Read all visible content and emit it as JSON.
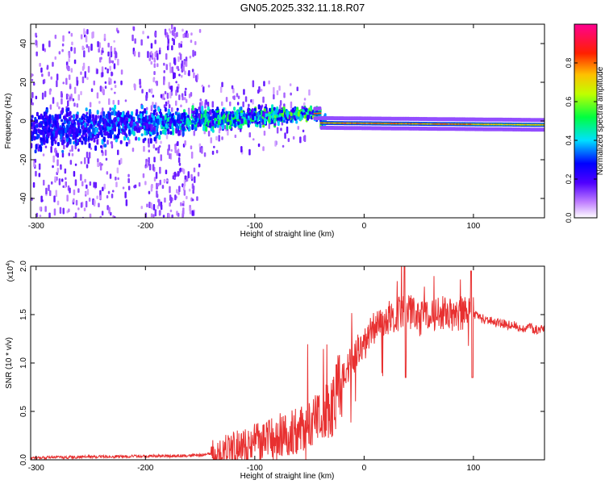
{
  "figure_title": "GN05.2025.332.11.18.R07",
  "chart_data": [
    {
      "type": "heatmap",
      "title": "GN05.2025.332.11.18.R07",
      "xlabel": "Height of straight line (km)",
      "ylabel": "Frequency (Hz)",
      "xlim": [
        -305,
        165
      ],
      "ylim": [
        -50,
        50
      ],
      "x_ticks": [
        -300,
        -200,
        -100,
        0,
        100
      ],
      "x_tick_labels": [
        "-300",
        "-200",
        "-100",
        "0",
        "100"
      ],
      "y_ticks": [
        -40,
        -20,
        0,
        20,
        40
      ],
      "y_tick_labels": [
        "-40",
        "-20",
        "0",
        "20",
        "40"
      ],
      "colorbar": {
        "label": "Normalized spectral amplitude",
        "range": [
          0,
          1
        ],
        "ticks": [
          0.0,
          0.2,
          0.4,
          0.6,
          0.8
        ],
        "tick_labels": [
          "0.0",
          "0.2",
          "0.4",
          "0.6",
          "0.8"
        ],
        "colors": [
          "#ffffff",
          "#8a2be2",
          "#0000ff",
          "#00ffff",
          "#00ff00",
          "#ffff00",
          "#ff8000",
          "#ff0000",
          "#ff00a0"
        ]
      },
      "features": {
        "broadband_noise_x_range": [
          -305,
          -150
        ],
        "narrowband_line_x_range": [
          -40,
          165
        ],
        "line_frequency_hz": -2
      }
    },
    {
      "type": "line",
      "xlabel": "Height of straight line (km)",
      "ylabel": "SNR (10 * v/v)",
      "y_multiplier_label": "(x10",
      "y_multiplier_exp": "4",
      "xlim": [
        -305,
        165
      ],
      "ylim": [
        0,
        2.0
      ],
      "x_ticks": [
        -300,
        -200,
        -100,
        0,
        100
      ],
      "x_tick_labels": [
        "-300",
        "-200",
        "-100",
        "0",
        "100"
      ],
      "y_ticks": [
        0.0,
        0.5,
        1.0,
        1.5,
        2.0
      ],
      "y_tick_labels": [
        "0.0",
        "0.5",
        "1.0",
        "1.5",
        "2.0"
      ],
      "series": [
        {
          "name": "SNR",
          "color": "#e83030",
          "x": [
            -305,
            -250,
            -200,
            -160,
            -140,
            -120,
            -100,
            -80,
            -60,
            -40,
            -30,
            -20,
            -10,
            0,
            10,
            20,
            30,
            40,
            50,
            60,
            70,
            80,
            90,
            100,
            110,
            120,
            130,
            140,
            150,
            165
          ],
          "y": [
            0.02,
            0.03,
            0.04,
            0.04,
            0.06,
            0.12,
            0.18,
            0.25,
            0.3,
            0.42,
            0.55,
            0.85,
            1.05,
            1.2,
            1.38,
            1.45,
            1.5,
            1.55,
            1.45,
            1.5,
            1.52,
            1.5,
            1.52,
            1.5,
            1.45,
            1.42,
            1.4,
            1.38,
            1.36,
            1.34
          ]
        }
      ]
    }
  ]
}
